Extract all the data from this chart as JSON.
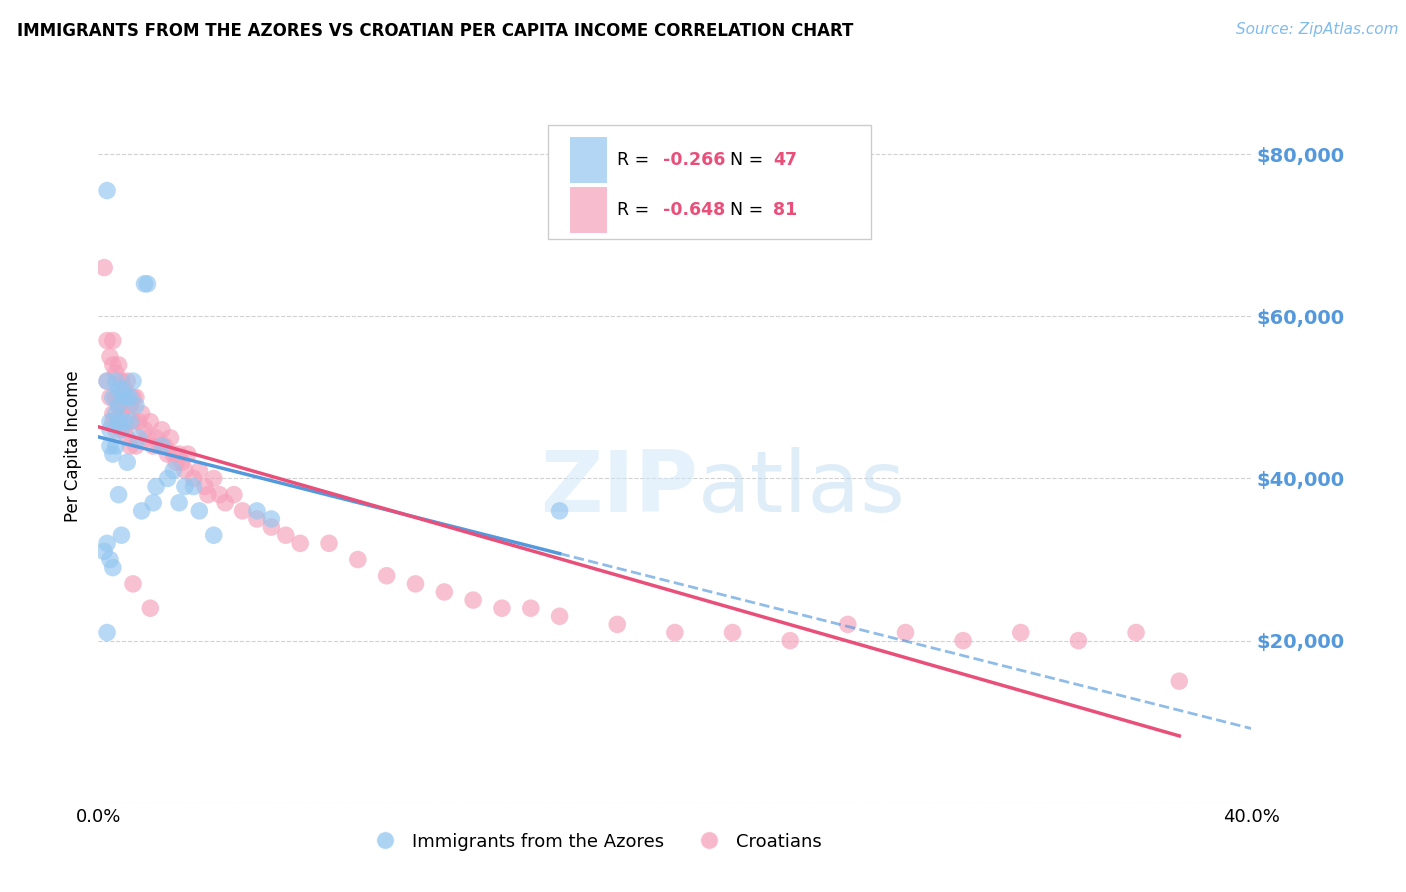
{
  "title": "IMMIGRANTS FROM THE AZORES VS CROATIAN PER CAPITA INCOME CORRELATION CHART",
  "source": "Source: ZipAtlas.com",
  "ylabel": "Per Capita Income",
  "xlim": [
    0.0,
    0.4
  ],
  "ylim": [
    0,
    88000
  ],
  "yticks": [
    0,
    20000,
    40000,
    60000,
    80000
  ],
  "ytick_labels": [
    "",
    "$20,000",
    "$40,000",
    "$60,000",
    "$80,000"
  ],
  "xticks": [
    0.0,
    0.05,
    0.1,
    0.15,
    0.2,
    0.25,
    0.3,
    0.35,
    0.4
  ],
  "blue_color": "#92C5F0",
  "pink_color": "#F5A0BA",
  "line_blue": "#5599DD",
  "line_pink": "#E8507A",
  "axis_color": "#5599DD",
  "watermark_color": "#D0E8F8",
  "blue_x": [
    0.002,
    0.003,
    0.003,
    0.004,
    0.004,
    0.004,
    0.005,
    0.005,
    0.005,
    0.006,
    0.006,
    0.006,
    0.007,
    0.007,
    0.007,
    0.007,
    0.008,
    0.008,
    0.008,
    0.009,
    0.009,
    0.01,
    0.01,
    0.011,
    0.011,
    0.012,
    0.013,
    0.014,
    0.015,
    0.016,
    0.017,
    0.019,
    0.02,
    0.022,
    0.024,
    0.026,
    0.028,
    0.03,
    0.033,
    0.035,
    0.04,
    0.055,
    0.06,
    0.003,
    0.004,
    0.16,
    0.003
  ],
  "blue_y": [
    31000,
    75500,
    32000,
    47000,
    44000,
    30000,
    50000,
    43000,
    29000,
    52000,
    48000,
    44000,
    51000,
    49000,
    47000,
    38000,
    51000,
    46000,
    33000,
    50000,
    47000,
    50000,
    42000,
    50000,
    47000,
    52000,
    49000,
    45000,
    36000,
    64000,
    64000,
    37000,
    39000,
    44000,
    40000,
    41000,
    37000,
    39000,
    39000,
    36000,
    33000,
    36000,
    35000,
    52000,
    46000,
    36000,
    21000
  ],
  "pink_x": [
    0.002,
    0.003,
    0.003,
    0.004,
    0.004,
    0.005,
    0.005,
    0.005,
    0.006,
    0.006,
    0.006,
    0.007,
    0.007,
    0.008,
    0.008,
    0.009,
    0.009,
    0.01,
    0.01,
    0.01,
    0.011,
    0.011,
    0.012,
    0.012,
    0.013,
    0.013,
    0.014,
    0.015,
    0.016,
    0.017,
    0.018,
    0.019,
    0.02,
    0.021,
    0.022,
    0.023,
    0.024,
    0.025,
    0.026,
    0.027,
    0.028,
    0.029,
    0.03,
    0.031,
    0.033,
    0.035,
    0.037,
    0.038,
    0.04,
    0.042,
    0.044,
    0.047,
    0.05,
    0.055,
    0.06,
    0.065,
    0.07,
    0.08,
    0.09,
    0.1,
    0.11,
    0.12,
    0.13,
    0.14,
    0.15,
    0.16,
    0.18,
    0.2,
    0.22,
    0.24,
    0.26,
    0.28,
    0.3,
    0.32,
    0.34,
    0.36,
    0.375,
    0.005,
    0.007,
    0.012,
    0.018
  ],
  "pink_y": [
    66000,
    57000,
    52000,
    55000,
    50000,
    57000,
    54000,
    47000,
    53000,
    50000,
    46000,
    54000,
    49000,
    52000,
    48000,
    51000,
    46000,
    52000,
    49000,
    45000,
    49000,
    44000,
    50000,
    47000,
    50000,
    44000,
    47000,
    48000,
    46000,
    45000,
    47000,
    44000,
    45000,
    44000,
    46000,
    44000,
    43000,
    45000,
    43000,
    42000,
    43000,
    42000,
    41000,
    43000,
    40000,
    41000,
    39000,
    38000,
    40000,
    38000,
    37000,
    38000,
    36000,
    35000,
    34000,
    33000,
    32000,
    32000,
    30000,
    28000,
    27000,
    26000,
    25000,
    24000,
    24000,
    23000,
    22000,
    21000,
    21000,
    20000,
    22000,
    21000,
    20000,
    21000,
    20000,
    21000,
    15000,
    48000,
    47000,
    27000,
    24000
  ]
}
